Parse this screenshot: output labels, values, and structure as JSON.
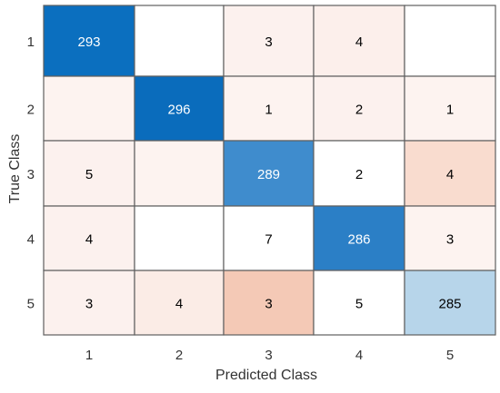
{
  "chart_data": {
    "type": "heatmap",
    "title": "",
    "xlabel": "Predicted Class",
    "ylabel": "True Class",
    "row_labels": [
      "1",
      "2",
      "3",
      "4",
      "5"
    ],
    "col_labels": [
      "1",
      "2",
      "3",
      "4",
      "5"
    ],
    "cells": [
      {
        "row": "1",
        "col": "1",
        "label": "293",
        "fill": "#0b6fbf",
        "text_color": "#ffffff"
      },
      {
        "row": "1",
        "col": "2",
        "label": "",
        "fill": "#ffffff",
        "text_color": "#000000"
      },
      {
        "row": "1",
        "col": "3",
        "label": "3",
        "fill": "#fcf1ee",
        "text_color": "#000000"
      },
      {
        "row": "1",
        "col": "4",
        "label": "4",
        "fill": "#fcefeb",
        "text_color": "#000000"
      },
      {
        "row": "1",
        "col": "5",
        "label": "",
        "fill": "#ffffff",
        "text_color": "#000000"
      },
      {
        "row": "2",
        "col": "1",
        "label": "",
        "fill": "#fdf3f0",
        "text_color": "#000000"
      },
      {
        "row": "2",
        "col": "2",
        "label": "296",
        "fill": "#0a6cbc",
        "text_color": "#ffffff"
      },
      {
        "row": "2",
        "col": "3",
        "label": "1",
        "fill": "#fdf3f0",
        "text_color": "#000000"
      },
      {
        "row": "2",
        "col": "4",
        "label": "2",
        "fill": "#fcf1ee",
        "text_color": "#000000"
      },
      {
        "row": "2",
        "col": "5",
        "label": "1",
        "fill": "#fdf3f0",
        "text_color": "#000000"
      },
      {
        "row": "3",
        "col": "1",
        "label": "5",
        "fill": "#fcf1ee",
        "text_color": "#000000"
      },
      {
        "row": "3",
        "col": "2",
        "label": "",
        "fill": "#fdf3f0",
        "text_color": "#000000"
      },
      {
        "row": "3",
        "col": "3",
        "label": "289",
        "fill": "#3f8ccd",
        "text_color": "#ffffff"
      },
      {
        "row": "3",
        "col": "4",
        "label": "2",
        "fill": "#ffffff",
        "text_color": "#000000"
      },
      {
        "row": "3",
        "col": "5",
        "label": "4",
        "fill": "#f9dccf",
        "text_color": "#000000"
      },
      {
        "row": "4",
        "col": "1",
        "label": "4",
        "fill": "#fcf1ee",
        "text_color": "#000000"
      },
      {
        "row": "4",
        "col": "2",
        "label": "",
        "fill": "#ffffff",
        "text_color": "#000000"
      },
      {
        "row": "4",
        "col": "3",
        "label": "7",
        "fill": "#ffffff",
        "text_color": "#000000"
      },
      {
        "row": "4",
        "col": "4",
        "label": "286",
        "fill": "#2b7fc6",
        "text_color": "#ffffff"
      },
      {
        "row": "4",
        "col": "5",
        "label": "3",
        "fill": "#fdf3f0",
        "text_color": "#000000"
      },
      {
        "row": "5",
        "col": "1",
        "label": "3",
        "fill": "#fcf1ee",
        "text_color": "#000000"
      },
      {
        "row": "5",
        "col": "2",
        "label": "4",
        "fill": "#fbece6",
        "text_color": "#000000"
      },
      {
        "row": "5",
        "col": "3",
        "label": "3",
        "fill": "#f4c9b6",
        "text_color": "#000000"
      },
      {
        "row": "5",
        "col": "4",
        "label": "5",
        "fill": "#ffffff",
        "text_color": "#000000"
      },
      {
        "row": "5",
        "col": "5",
        "label": "285",
        "fill": "#b7d5ea",
        "text_color": "#000000"
      }
    ],
    "grid_color": "#5f5f5f",
    "axis_text_color": "#333333",
    "grid": true,
    "legend": "none"
  }
}
